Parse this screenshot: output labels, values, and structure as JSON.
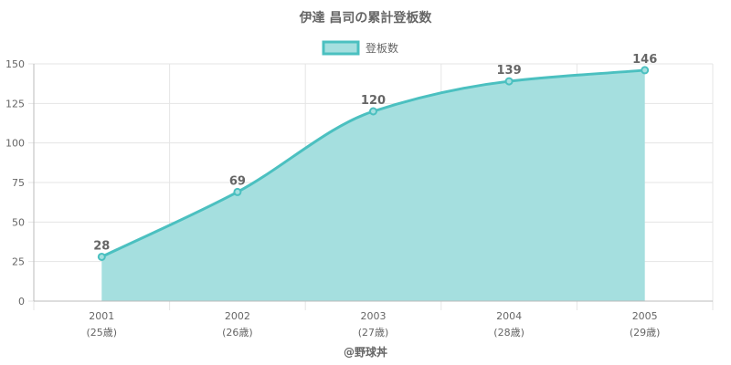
{
  "chart_data": {
    "type": "area",
    "title": "伊達 昌司の累計登板数",
    "legend": {
      "label": "登板数",
      "position": "top"
    },
    "categories": [
      "2001",
      "2002",
      "2003",
      "2004",
      "2005"
    ],
    "category_sublabels": [
      "(25歳)",
      "(26歳)",
      "(27歳)",
      "(28歳)",
      "(29歳)"
    ],
    "series": [
      {
        "name": "登板数",
        "values": [
          28,
          69,
          120,
          139,
          146
        ]
      }
    ],
    "ylim": [
      0,
      150
    ],
    "yticks": [
      0,
      25,
      50,
      75,
      100,
      125,
      150
    ],
    "grid": true,
    "colors": {
      "line": "#4BC0C0",
      "fill": "#A5DFDF",
      "grid": "#e5e5e5",
      "axis": "#bbbbbb",
      "text": "#666666"
    }
  },
  "footer": "@野球丼"
}
